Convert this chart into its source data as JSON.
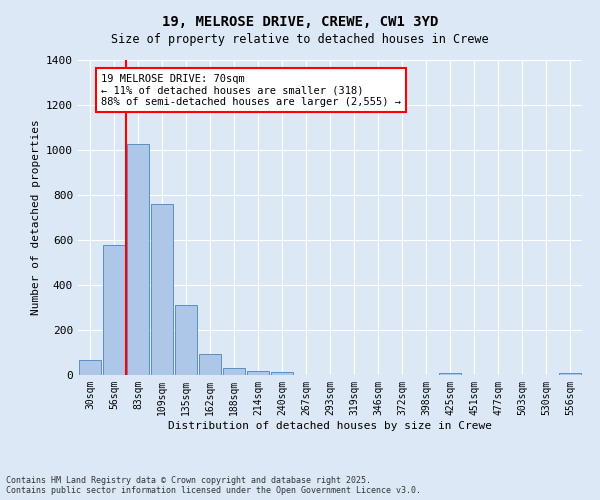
{
  "title1": "19, MELROSE DRIVE, CREWE, CW1 3YD",
  "title2": "Size of property relative to detached houses in Crewe",
  "xlabel": "Distribution of detached houses by size in Crewe",
  "ylabel": "Number of detached properties",
  "bar_categories": [
    "30sqm",
    "56sqm",
    "83sqm",
    "109sqm",
    "135sqm",
    "162sqm",
    "188sqm",
    "214sqm",
    "240sqm",
    "267sqm",
    "293sqm",
    "319sqm",
    "346sqm",
    "372sqm",
    "398sqm",
    "425sqm",
    "451sqm",
    "477sqm",
    "503sqm",
    "530sqm",
    "556sqm"
  ],
  "bar_values": [
    65,
    580,
    1025,
    760,
    310,
    95,
    30,
    20,
    15,
    0,
    0,
    0,
    0,
    0,
    0,
    10,
    0,
    0,
    0,
    0,
    10
  ],
  "bar_color": "#aec6e8",
  "bar_edge_color": "#5a8fc0",
  "vline_color": "red",
  "vline_x": 1.5,
  "annotation_title": "19 MELROSE DRIVE: 70sqm",
  "annotation_line1": "← 11% of detached houses are smaller (318)",
  "annotation_line2": "88% of semi-detached houses are larger (2,555) →",
  "ylim": [
    0,
    1400
  ],
  "yticks": [
    0,
    200,
    400,
    600,
    800,
    1000,
    1200,
    1400
  ],
  "footer1": "Contains HM Land Registry data © Crown copyright and database right 2025.",
  "footer2": "Contains public sector information licensed under the Open Government Licence v3.0.",
  "bg_color": "#dce8f5",
  "plot_bg_color": "#dce8f5",
  "grid_color": "#ffffff",
  "title1_fontsize": 10,
  "title2_fontsize": 8.5,
  "bar_linewidth": 0.7,
  "ann_fontsize": 7.5
}
